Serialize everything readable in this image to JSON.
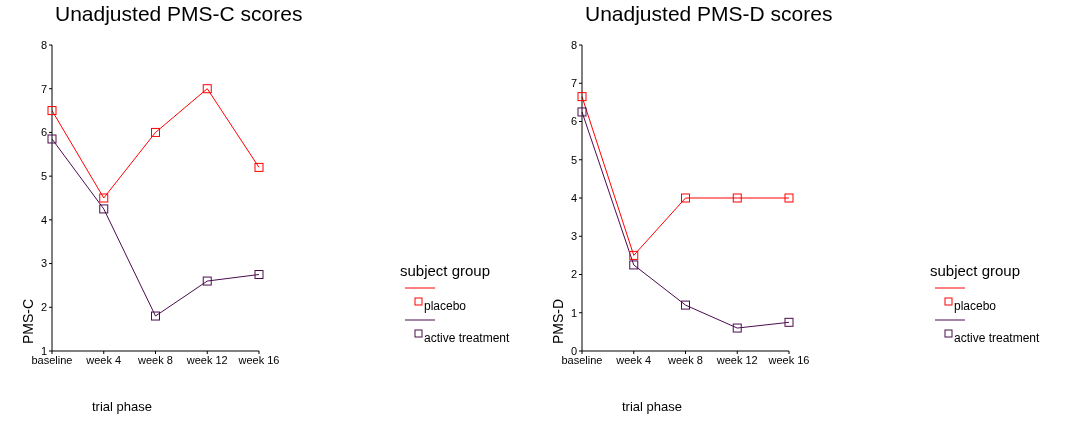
{
  "chart_data": [
    {
      "type": "line",
      "title": "Unadjusted PMS-C scores",
      "xlabel": "trial phase",
      "ylabel": "PMS-C",
      "categories": [
        "baseline",
        "week 4",
        "week 8",
        "week 12",
        "week 16"
      ],
      "series": [
        {
          "name": "placebo",
          "color": "#ff0000",
          "values": [
            6.5,
            4.5,
            6.0,
            7.0,
            5.2
          ]
        },
        {
          "name": "active treatment",
          "color": "#4b0c4f",
          "values": [
            5.85,
            4.25,
            1.8,
            2.6,
            2.75
          ]
        }
      ],
      "ylim": [
        1,
        8
      ],
      "yticks": [
        1,
        2,
        3,
        4,
        5,
        6,
        7,
        8
      ],
      "grid": false,
      "legend": "right",
      "legend_title": "subject group",
      "marker": "square",
      "line_style": "solid"
    },
    {
      "type": "line",
      "title": "Unadjusted PMS-D scores",
      "xlabel": "trial phase",
      "ylabel": "PMS-D",
      "categories": [
        "baseline",
        "week 4",
        "week 8",
        "week 12",
        "week 16"
      ],
      "series": [
        {
          "name": "placebo",
          "color": "#ff0000",
          "values": [
            6.65,
            2.5,
            4.0,
            4.0,
            4.0
          ]
        },
        {
          "name": "active treatment",
          "color": "#4b0c4f",
          "values": [
            6.25,
            2.25,
            1.2,
            0.6,
            0.75
          ]
        }
      ],
      "ylim": [
        0,
        8
      ],
      "yticks": [
        0,
        1,
        2,
        3,
        4,
        5,
        6,
        7,
        8
      ],
      "grid": false,
      "legend": "right",
      "legend_title": "subject group",
      "marker": "square",
      "line_style": "solid"
    }
  ]
}
